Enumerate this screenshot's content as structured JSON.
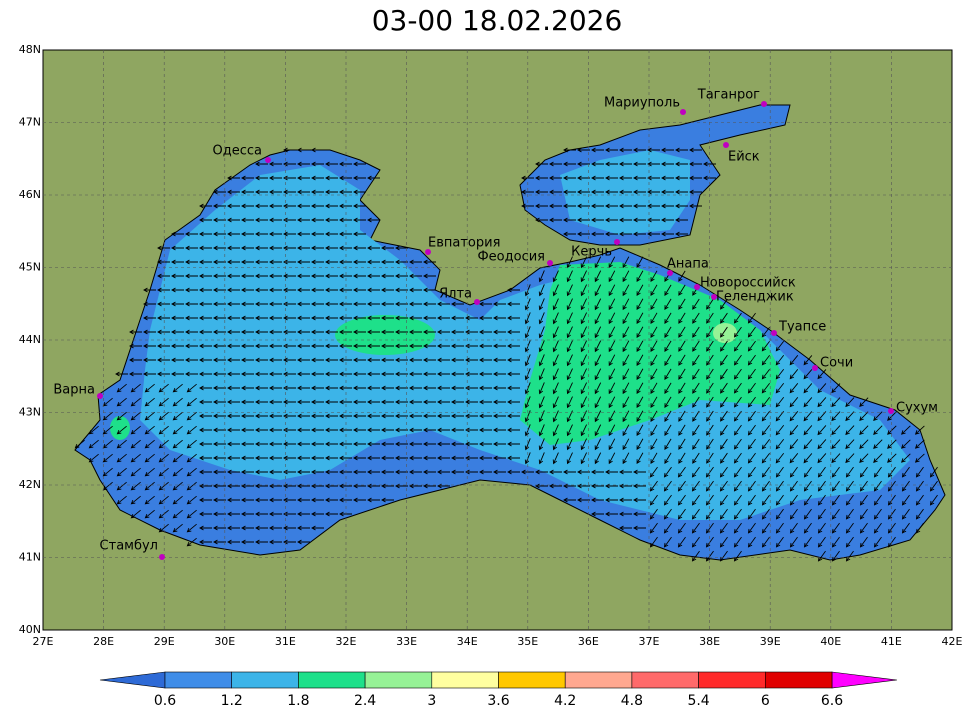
{
  "title": "03-00     18.02.2026",
  "y_axis": {
    "labels": [
      "48N",
      "47N",
      "46N",
      "45N",
      "44N",
      "43N",
      "42N",
      "41N",
      "40N"
    ]
  },
  "x_axis": {
    "labels": [
      "27E",
      "28E",
      "29E",
      "30E",
      "31E",
      "32E",
      "33E",
      "34E",
      "35E",
      "36E",
      "37E",
      "38E",
      "39E",
      "40E",
      "41E",
      "42E"
    ]
  },
  "cities": [
    {
      "label": "Одесса"
    },
    {
      "label": "Евпатория"
    },
    {
      "label": "Феодосия"
    },
    {
      "label": "Керчь"
    },
    {
      "label": "Ялта"
    },
    {
      "label": "Анапа"
    },
    {
      "label": "Новороссийск"
    },
    {
      "label": "Геленджик"
    },
    {
      "label": "Туапсе"
    },
    {
      "label": "Сочи"
    },
    {
      "label": "Сухум"
    },
    {
      "label": "Варна"
    },
    {
      "label": "Стамбул"
    },
    {
      "label": "Мариуполь"
    },
    {
      "label": "Таганрог"
    },
    {
      "label": "Ейск"
    }
  ],
  "colorbar": {
    "labels": [
      "0.6",
      "1.2",
      "1.8",
      "2.4",
      "3",
      "3.6",
      "4.2",
      "4.8",
      "5.4",
      "6",
      "6.6"
    ],
    "colors": [
      "#3f8de8",
      "#3cb4e8",
      "#1ee08a",
      "#96f296",
      "#ffffa0",
      "#ffc800",
      "#ffa890",
      "#ff6a6a",
      "#ff2a2a",
      "#e00000"
    ],
    "low_color": "#2e6ad6",
    "high_color": "#ff00ff"
  }
}
